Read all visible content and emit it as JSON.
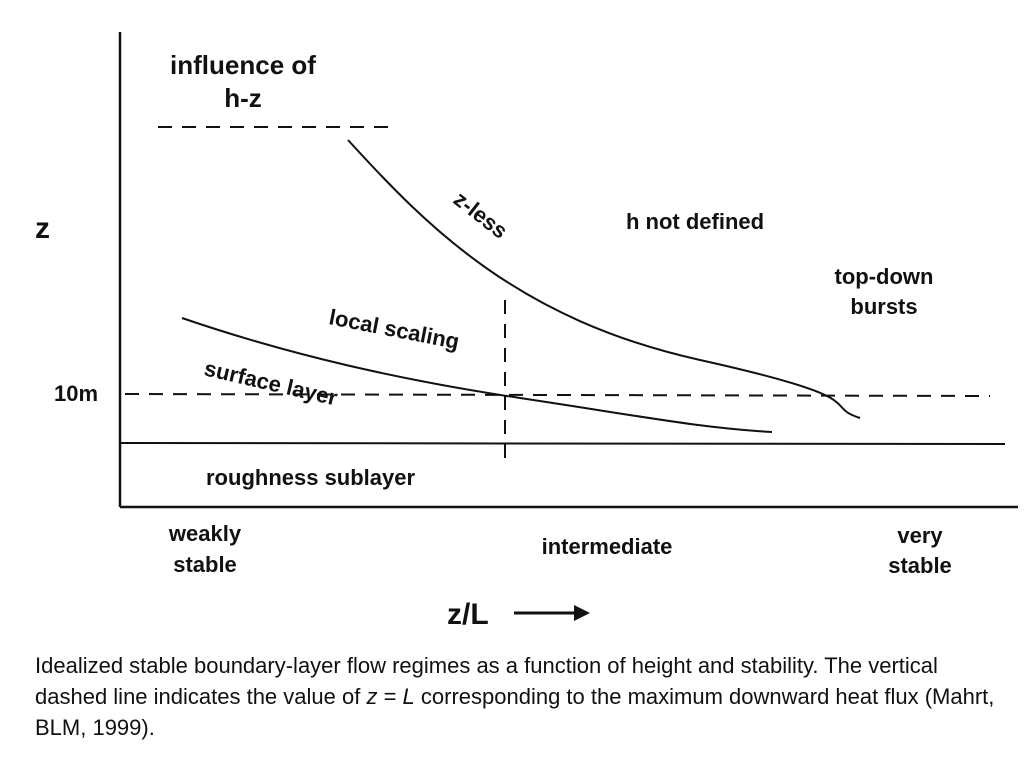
{
  "diagram": {
    "y_axis_label": "z",
    "x_axis_label": "z/L",
    "x_axis_arrow": "→",
    "height_mark_label": "10m",
    "regions": {
      "influence_line1": "influence of",
      "influence_line2": "h-z",
      "z_less": "z-less",
      "h_not_defined": "h not defined",
      "top_down_line1": "top-down",
      "top_down_line2": "bursts",
      "local_scaling": "local scaling",
      "surface_layer": "surface layer",
      "roughness_sublayer": "roughness sublayer"
    },
    "stability_classes": {
      "weak_line1": "weakly",
      "weak_line2": "stable",
      "intermediate": "intermediate",
      "very_line1": "very",
      "very_line2": "stable"
    }
  },
  "caption": {
    "part1": "Idealized stable boundary-layer flow regimes as a function of height and stability.  The vertical dashed line indicates the value of ",
    "italic1": "z",
    "part2": " = ",
    "italic2": "L",
    "part3": " corresponding to the maximum downward heat flux (Mahrt, BLM, 1999)."
  }
}
